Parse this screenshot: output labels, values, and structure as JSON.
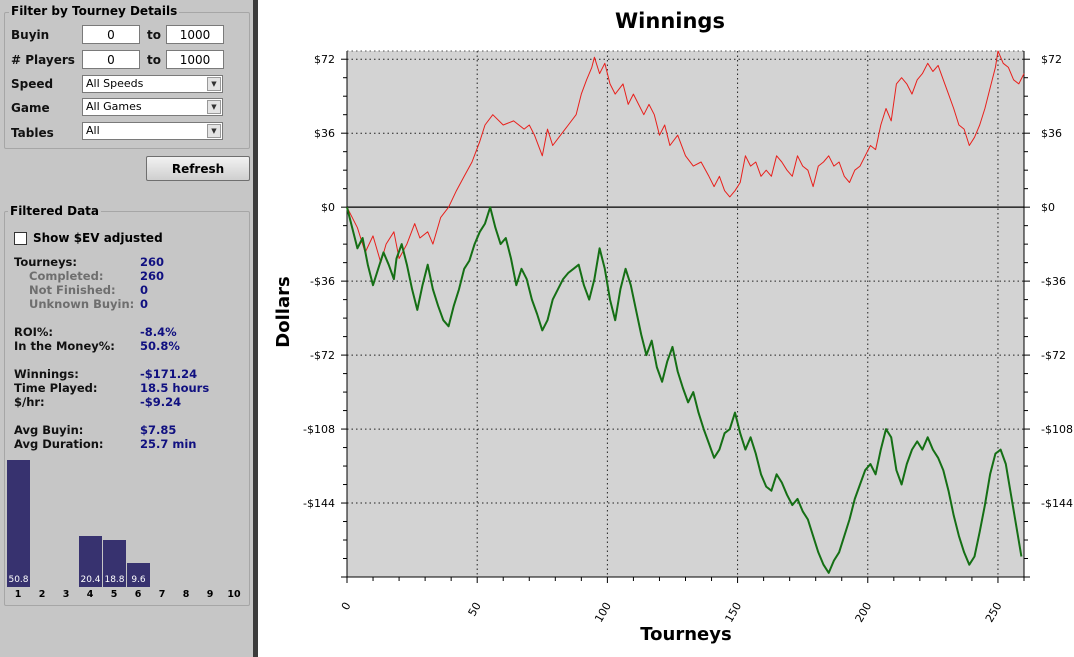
{
  "filter": {
    "title": "Filter by Tourney Details",
    "buyin": {
      "label": "Buyin",
      "from": "0",
      "to_label": "to",
      "to": "1000"
    },
    "players": {
      "label": "# Players",
      "from": "0",
      "to_label": "to",
      "to": "1000"
    },
    "speed": {
      "label": "Speed",
      "value": "All Speeds"
    },
    "game": {
      "label": "Game",
      "value": "All Games"
    },
    "tables": {
      "label": "Tables",
      "value": "All"
    },
    "refresh_label": "Refresh"
  },
  "filtered": {
    "title": "Filtered Data",
    "ev_label": "Show $EV adjusted",
    "ev_checked": false,
    "stats": [
      {
        "label": "Tourneys:",
        "value": "260",
        "sub": false
      },
      {
        "label": "Completed:",
        "value": "260",
        "sub": true
      },
      {
        "label": "Not Finished:",
        "value": "0",
        "sub": true
      },
      {
        "label": "Unknown Buyin:",
        "value": "0",
        "sub": true
      },
      {
        "label": "ROI%:",
        "value": "-8.4%",
        "sub": false
      },
      {
        "label": "In the Money%:",
        "value": "50.8%",
        "sub": false
      },
      {
        "label": "Winnings:",
        "value": "-$171.24",
        "sub": false
      },
      {
        "label": "Time Played:",
        "value": "18.5  hours",
        "sub": false
      },
      {
        "label": "$/hr:",
        "value": "-$9.24",
        "sub": false
      },
      {
        "label": "Avg Buyin:",
        "value": "$7.85",
        "sub": false
      },
      {
        "label": "Avg Duration:",
        "value": "25.7  min",
        "sub": false
      }
    ],
    "finish_histogram": {
      "categories": [
        "1",
        "2",
        "3",
        "4",
        "5",
        "6",
        "7",
        "8",
        "9",
        "10"
      ],
      "values": [
        50.8,
        0,
        0,
        20.4,
        18.8,
        9.6,
        0,
        0,
        0,
        0
      ],
      "labels": [
        "50.8",
        "",
        "",
        "20.4",
        "18.8",
        "9.6",
        "",
        "",
        "",
        ""
      ],
      "bar_color": "#37326f"
    }
  },
  "chart_data": {
    "type": "line",
    "title": "Winnings",
    "xlabel": "Tourneys",
    "ylabel": "Dollars",
    "xlim": [
      0,
      260
    ],
    "ylim": [
      -180,
      76
    ],
    "x_ticks": [
      0,
      50,
      100,
      150,
      200,
      250
    ],
    "y_ticks": [
      72,
      36,
      0,
      -36,
      -72,
      -108,
      -144
    ],
    "y_tick_labels": [
      "$72",
      "$36",
      "$0",
      "-$36",
      "-$72",
      "-$108",
      "-$144"
    ],
    "grid": true,
    "background": "#d3d3d3",
    "series": [
      {
        "color": "#e8201c",
        "keypoints": [
          [
            0,
            0
          ],
          [
            4,
            -10
          ],
          [
            7,
            -22
          ],
          [
            10,
            -14
          ],
          [
            13,
            -27
          ],
          [
            15,
            -18
          ],
          [
            18,
            -12
          ],
          [
            20,
            -25
          ],
          [
            23,
            -18
          ],
          [
            26,
            -8
          ],
          [
            28,
            -15
          ],
          [
            31,
            -12
          ],
          [
            33,
            -18
          ],
          [
            36,
            -5
          ],
          [
            39,
            0
          ],
          [
            42,
            8
          ],
          [
            45,
            15
          ],
          [
            48,
            22
          ],
          [
            51,
            32
          ],
          [
            53,
            40
          ],
          [
            56,
            45
          ],
          [
            60,
            40
          ],
          [
            64,
            42
          ],
          [
            68,
            38
          ],
          [
            70,
            40
          ],
          [
            72,
            35
          ],
          [
            75,
            25
          ],
          [
            77,
            38
          ],
          [
            79,
            30
          ],
          [
            82,
            35
          ],
          [
            85,
            40
          ],
          [
            88,
            45
          ],
          [
            90,
            55
          ],
          [
            92,
            62
          ],
          [
            94,
            68
          ],
          [
            95,
            73
          ],
          [
            97,
            65
          ],
          [
            99,
            70
          ],
          [
            101,
            60
          ],
          [
            103,
            55
          ],
          [
            106,
            60
          ],
          [
            108,
            50
          ],
          [
            110,
            55
          ],
          [
            112,
            50
          ],
          [
            114,
            45
          ],
          [
            116,
            50
          ],
          [
            118,
            45
          ],
          [
            120,
            35
          ],
          [
            122,
            40
          ],
          [
            124,
            30
          ],
          [
            127,
            35
          ],
          [
            130,
            25
          ],
          [
            133,
            20
          ],
          [
            136,
            22
          ],
          [
            139,
            15
          ],
          [
            141,
            10
          ],
          [
            143,
            15
          ],
          [
            145,
            8
          ],
          [
            147,
            5
          ],
          [
            149,
            8
          ],
          [
            151,
            12
          ],
          [
            153,
            25
          ],
          [
            155,
            20
          ],
          [
            157,
            22
          ],
          [
            159,
            15
          ],
          [
            161,
            18
          ],
          [
            163,
            15
          ],
          [
            165,
            25
          ],
          [
            167,
            22
          ],
          [
            169,
            18
          ],
          [
            171,
            15
          ],
          [
            173,
            25
          ],
          [
            175,
            20
          ],
          [
            177,
            18
          ],
          [
            179,
            10
          ],
          [
            181,
            20
          ],
          [
            183,
            22
          ],
          [
            185,
            25
          ],
          [
            187,
            20
          ],
          [
            189,
            22
          ],
          [
            191,
            15
          ],
          [
            193,
            12
          ],
          [
            195,
            18
          ],
          [
            197,
            20
          ],
          [
            199,
            25
          ],
          [
            201,
            30
          ],
          [
            203,
            28
          ],
          [
            205,
            40
          ],
          [
            207,
            48
          ],
          [
            209,
            42
          ],
          [
            211,
            60
          ],
          [
            213,
            63
          ],
          [
            215,
            60
          ],
          [
            217,
            55
          ],
          [
            219,
            62
          ],
          [
            221,
            65
          ],
          [
            223,
            70
          ],
          [
            225,
            66
          ],
          [
            227,
            69
          ],
          [
            229,
            62
          ],
          [
            231,
            55
          ],
          [
            233,
            48
          ],
          [
            235,
            40
          ],
          [
            237,
            38
          ],
          [
            239,
            30
          ],
          [
            241,
            34
          ],
          [
            243,
            40
          ],
          [
            245,
            48
          ],
          [
            247,
            58
          ],
          [
            249,
            68
          ],
          [
            250,
            76
          ],
          [
            252,
            70
          ],
          [
            254,
            68
          ],
          [
            256,
            62
          ],
          [
            258,
            60
          ],
          [
            260,
            65
          ]
        ]
      },
      {
        "color": "#156f15",
        "keypoints": [
          [
            0,
            0
          ],
          [
            2,
            -10
          ],
          [
            4,
            -20
          ],
          [
            6,
            -15
          ],
          [
            8,
            -28
          ],
          [
            10,
            -38
          ],
          [
            12,
            -30
          ],
          [
            14,
            -22
          ],
          [
            16,
            -28
          ],
          [
            18,
            -35
          ],
          [
            19,
            -25
          ],
          [
            21,
            -18
          ],
          [
            23,
            -28
          ],
          [
            25,
            -40
          ],
          [
            27,
            -50
          ],
          [
            29,
            -38
          ],
          [
            31,
            -28
          ],
          [
            33,
            -40
          ],
          [
            35,
            -48
          ],
          [
            37,
            -55
          ],
          [
            39,
            -58
          ],
          [
            41,
            -48
          ],
          [
            43,
            -40
          ],
          [
            45,
            -30
          ],
          [
            47,
            -26
          ],
          [
            49,
            -18
          ],
          [
            51,
            -12
          ],
          [
            53,
            -8
          ],
          [
            55,
            0
          ],
          [
            57,
            -10
          ],
          [
            59,
            -18
          ],
          [
            61,
            -15
          ],
          [
            63,
            -25
          ],
          [
            65,
            -38
          ],
          [
            67,
            -30
          ],
          [
            69,
            -35
          ],
          [
            71,
            -45
          ],
          [
            73,
            -52
          ],
          [
            75,
            -60
          ],
          [
            77,
            -55
          ],
          [
            79,
            -45
          ],
          [
            81,
            -40
          ],
          [
            83,
            -35
          ],
          [
            85,
            -32
          ],
          [
            87,
            -30
          ],
          [
            89,
            -28
          ],
          [
            91,
            -38
          ],
          [
            93,
            -45
          ],
          [
            95,
            -35
          ],
          [
            97,
            -20
          ],
          [
            99,
            -30
          ],
          [
            101,
            -45
          ],
          [
            103,
            -55
          ],
          [
            105,
            -40
          ],
          [
            107,
            -30
          ],
          [
            109,
            -38
          ],
          [
            111,
            -50
          ],
          [
            113,
            -62
          ],
          [
            115,
            -72
          ],
          [
            117,
            -65
          ],
          [
            119,
            -78
          ],
          [
            121,
            -85
          ],
          [
            123,
            -75
          ],
          [
            125,
            -68
          ],
          [
            127,
            -80
          ],
          [
            129,
            -88
          ],
          [
            131,
            -95
          ],
          [
            133,
            -90
          ],
          [
            135,
            -100
          ],
          [
            137,
            -108
          ],
          [
            139,
            -115
          ],
          [
            141,
            -122
          ],
          [
            143,
            -118
          ],
          [
            145,
            -110
          ],
          [
            147,
            -108
          ],
          [
            149,
            -100
          ],
          [
            151,
            -110
          ],
          [
            153,
            -118
          ],
          [
            155,
            -112
          ],
          [
            157,
            -120
          ],
          [
            159,
            -130
          ],
          [
            161,
            -136
          ],
          [
            163,
            -138
          ],
          [
            165,
            -130
          ],
          [
            167,
            -134
          ],
          [
            169,
            -140
          ],
          [
            171,
            -145
          ],
          [
            173,
            -142
          ],
          [
            175,
            -148
          ],
          [
            177,
            -152
          ],
          [
            179,
            -160
          ],
          [
            181,
            -168
          ],
          [
            183,
            -174
          ],
          [
            185,
            -178
          ],
          [
            187,
            -172
          ],
          [
            189,
            -168
          ],
          [
            191,
            -160
          ],
          [
            193,
            -152
          ],
          [
            195,
            -142
          ],
          [
            197,
            -135
          ],
          [
            199,
            -128
          ],
          [
            201,
            -125
          ],
          [
            203,
            -130
          ],
          [
            205,
            -118
          ],
          [
            207,
            -108
          ],
          [
            209,
            -112
          ],
          [
            211,
            -128
          ],
          [
            213,
            -135
          ],
          [
            215,
            -125
          ],
          [
            217,
            -118
          ],
          [
            219,
            -114
          ],
          [
            221,
            -118
          ],
          [
            223,
            -112
          ],
          [
            225,
            -118
          ],
          [
            227,
            -122
          ],
          [
            229,
            -128
          ],
          [
            231,
            -138
          ],
          [
            233,
            -150
          ],
          [
            235,
            -160
          ],
          [
            237,
            -168
          ],
          [
            239,
            -174
          ],
          [
            241,
            -170
          ],
          [
            243,
            -158
          ],
          [
            245,
            -145
          ],
          [
            247,
            -130
          ],
          [
            249,
            -120
          ],
          [
            251,
            -118
          ],
          [
            253,
            -125
          ],
          [
            255,
            -140
          ],
          [
            257,
            -155
          ],
          [
            259,
            -170
          ]
        ]
      }
    ]
  }
}
